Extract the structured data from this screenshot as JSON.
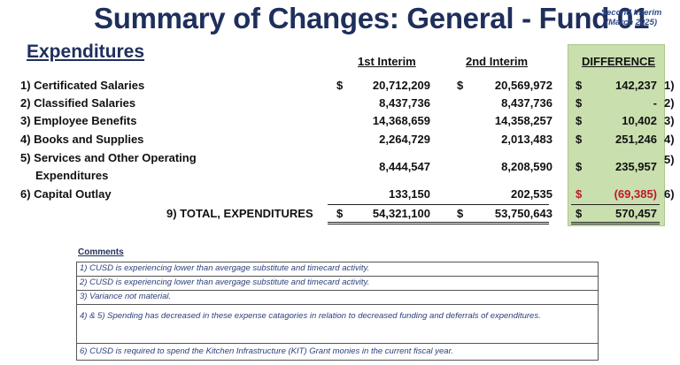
{
  "header": {
    "title": "Summary of Changes: General - Fund 01",
    "interim_line1": "Second Interim",
    "interim_line2": "(March 2025)"
  },
  "section": {
    "heading": "Expenditures"
  },
  "columns": {
    "first": "1st Interim",
    "second": "2nd Interim",
    "difference": "DIFFERENCE"
  },
  "rows": [
    {
      "label": "1) Certificated Salaries",
      "sign1": "$",
      "first": "20,712,209",
      "sign2": "$",
      "second": "20,569,972",
      "sign3": "$",
      "diff": "142,237",
      "marker": "1)"
    },
    {
      "label": "2) Classified Salaries",
      "sign1": "",
      "first": "8,437,736",
      "sign2": "",
      "second": "8,437,736",
      "sign3": "$",
      "diff": "-",
      "marker": "2)"
    },
    {
      "label": "3) Employee Benefits",
      "sign1": "",
      "first": "14,368,659",
      "sign2": "",
      "second": "14,358,257",
      "sign3": "$",
      "diff": "10,402",
      "marker": "3)"
    },
    {
      "label": "4) Books and Supplies",
      "sign1": "",
      "first": "2,264,729",
      "sign2": "",
      "second": "2,013,483",
      "sign3": "$",
      "diff": "251,246",
      "marker": "4)"
    },
    {
      "label_line1": "5) Services and Other Operating",
      "label_line2": "Expenditures",
      "sign1": "",
      "first": "8,444,547",
      "sign2": "",
      "second": "8,208,590",
      "sign3": "$",
      "diff": "235,957",
      "marker": "5)"
    },
    {
      "label": "6) Capital Outlay",
      "sign1": "",
      "first": "133,150",
      "sign2": "",
      "second": "202,535",
      "sign3": "$",
      "diff": "(69,385)",
      "marker": "6)"
    }
  ],
  "total": {
    "label": "9) TOTAL, EXPENDITURES",
    "sign1": "$",
    "first": "54,321,100",
    "sign2": "$",
    "second": "53,750,643",
    "sign3": "$",
    "diff": "570,457"
  },
  "comments": {
    "heading": "Comments",
    "items": [
      "1) CUSD is experiencing lower than avergage substitute and timecard activity.",
      "2) CUSD is experiencing lower than avergage substitute and timecard activity.",
      "3) Variance not material.",
      "4) & 5) Spending has decreased in these expense catagories in relation to decreased funding and deferrals of expenditures.",
      "6) CUSD is required to spend the Kitchen Infrastructure (KIT) Grant monies in the current fiscal year."
    ]
  },
  "colors": {
    "title": "#1f2f5c",
    "difference_panel": "#c9dfae",
    "negative": "#c0172d"
  }
}
